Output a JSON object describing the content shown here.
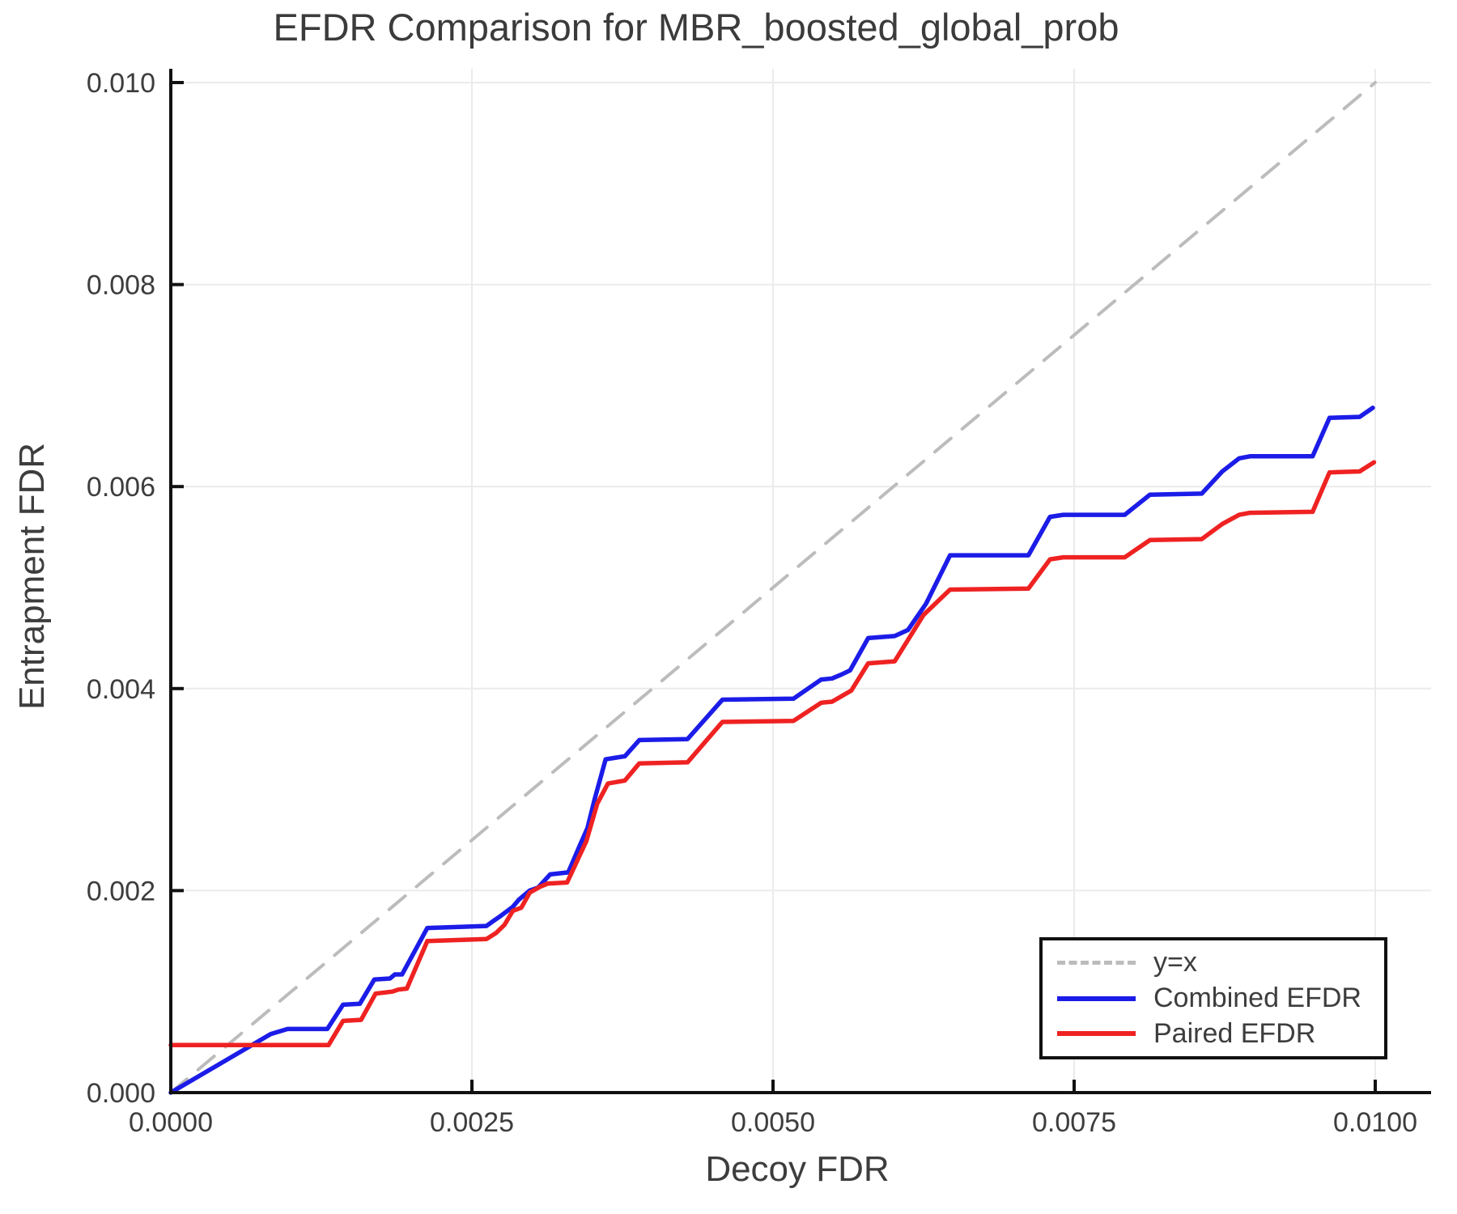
{
  "figure": {
    "title": "EFDR Comparison for MBR_boosted_global_prob",
    "xlabel": "Decoy FDR",
    "ylabel": "Entrapment FDR"
  },
  "legend": {
    "position": "lower right",
    "items": [
      {
        "label": "y=x",
        "style": "dashed",
        "color": "#bcbcbc"
      },
      {
        "label": "Combined EFDR",
        "style": "solid",
        "color": "#1c1ce8"
      },
      {
        "label": "Paired EFDR",
        "style": "solid",
        "color": "#ef2222"
      }
    ]
  },
  "axes": {
    "x_tick_labels": [
      "0.0000",
      "0.0025",
      "0.0050",
      "0.0075",
      "0.0100"
    ],
    "x_tick_values": [
      0,
      0.0025,
      0.005,
      0.0075,
      0.01
    ],
    "y_tick_labels": [
      "0.000",
      "0.002",
      "0.004",
      "0.006",
      "0.008",
      "0.010"
    ],
    "y_tick_values": [
      0,
      0.002,
      0.004,
      0.006,
      0.008,
      0.01
    ]
  },
  "style": {
    "background": "#ffffff",
    "grid_color": "#ebebeb",
    "spine_color": "#111111",
    "text_color": "#3d3d3d",
    "identity_color": "#bcbcbc",
    "combined_color": "#1c1ce8",
    "paired_color": "#ef2222"
  },
  "chart_data": {
    "type": "line",
    "title": "EFDR Comparison for MBR_boosted_global_prob",
    "xlabel": "Decoy FDR",
    "ylabel": "Entrapment FDR",
    "xlim": [
      0,
      0.01
    ],
    "ylim": [
      0,
      0.01
    ],
    "grid": true,
    "legend_position": "lower right",
    "series": [
      {
        "name": "y=x",
        "style": "dashed",
        "color": "#bcbcbc",
        "points": [
          [
            0,
            0
          ],
          [
            0.01,
            0.01
          ]
        ]
      },
      {
        "name": "Combined EFDR",
        "style": "solid",
        "color": "#1c1ce8",
        "points": [
          [
            0.0,
            0.0
          ],
          [
            0.00083,
            0.00058
          ],
          [
            0.00097,
            0.00063
          ],
          [
            0.0013,
            0.00063
          ],
          [
            0.00143,
            0.00087
          ],
          [
            0.00157,
            0.00088
          ],
          [
            0.00169,
            0.00112
          ],
          [
            0.00182,
            0.00113
          ],
          [
            0.00186,
            0.00117
          ],
          [
            0.00192,
            0.00117
          ],
          [
            0.00213,
            0.00163
          ],
          [
            0.00262,
            0.00165
          ],
          [
            0.00268,
            0.0017
          ],
          [
            0.00274,
            0.00175
          ],
          [
            0.00284,
            0.00184
          ],
          [
            0.00289,
            0.00191
          ],
          [
            0.00298,
            0.002
          ],
          [
            0.00305,
            0.00203
          ],
          [
            0.00315,
            0.00216
          ],
          [
            0.0033,
            0.00218
          ],
          [
            0.00339,
            0.00243
          ],
          [
            0.00346,
            0.00262
          ],
          [
            0.00352,
            0.00291
          ],
          [
            0.00361,
            0.0033
          ],
          [
            0.00377,
            0.00333
          ],
          [
            0.00389,
            0.00349
          ],
          [
            0.00429,
            0.0035
          ],
          [
            0.00458,
            0.00389
          ],
          [
            0.00517,
            0.0039
          ],
          [
            0.0054,
            0.00409
          ],
          [
            0.00549,
            0.0041
          ],
          [
            0.00557,
            0.00414
          ],
          [
            0.00564,
            0.00418
          ],
          [
            0.00579,
            0.0045
          ],
          [
            0.00601,
            0.00452
          ],
          [
            0.00612,
            0.00458
          ],
          [
            0.00627,
            0.00484
          ],
          [
            0.00647,
            0.00532
          ],
          [
            0.00712,
            0.00532
          ],
          [
            0.0073,
            0.0057
          ],
          [
            0.00741,
            0.00572
          ],
          [
            0.00792,
            0.00572
          ],
          [
            0.00813,
            0.00592
          ],
          [
            0.00856,
            0.00593
          ],
          [
            0.00873,
            0.00615
          ],
          [
            0.00887,
            0.00628
          ],
          [
            0.00896,
            0.0063
          ],
          [
            0.00948,
            0.0063
          ],
          [
            0.00962,
            0.00668
          ],
          [
            0.00987,
            0.00669
          ],
          [
            0.00998,
            0.00678
          ]
        ]
      },
      {
        "name": "Paired EFDR",
        "style": "solid",
        "color": "#ef2222",
        "points": [
          [
            0.0,
            0.00047
          ],
          [
            0.00131,
            0.00047
          ],
          [
            0.00143,
            0.00071
          ],
          [
            0.00158,
            0.00072
          ],
          [
            0.0017,
            0.00098
          ],
          [
            0.00184,
            0.001
          ],
          [
            0.00189,
            0.00102
          ],
          [
            0.00196,
            0.00103
          ],
          [
            0.00213,
            0.0015
          ],
          [
            0.00262,
            0.00152
          ],
          [
            0.0027,
            0.00158
          ],
          [
            0.00277,
            0.00166
          ],
          [
            0.00284,
            0.0018
          ],
          [
            0.00291,
            0.00183
          ],
          [
            0.00298,
            0.00198
          ],
          [
            0.00307,
            0.00204
          ],
          [
            0.00313,
            0.00207
          ],
          [
            0.00329,
            0.00208
          ],
          [
            0.00345,
            0.00249
          ],
          [
            0.00354,
            0.00286
          ],
          [
            0.00363,
            0.00306
          ],
          [
            0.00377,
            0.00309
          ],
          [
            0.00389,
            0.00326
          ],
          [
            0.00429,
            0.00327
          ],
          [
            0.00458,
            0.00367
          ],
          [
            0.00517,
            0.00368
          ],
          [
            0.0054,
            0.00386
          ],
          [
            0.00549,
            0.00387
          ],
          [
            0.00565,
            0.00398
          ],
          [
            0.00579,
            0.00425
          ],
          [
            0.00601,
            0.00427
          ],
          [
            0.00625,
            0.00473
          ],
          [
            0.00647,
            0.00498
          ],
          [
            0.00712,
            0.00499
          ],
          [
            0.0073,
            0.00528
          ],
          [
            0.00741,
            0.0053
          ],
          [
            0.00792,
            0.0053
          ],
          [
            0.00813,
            0.00547
          ],
          [
            0.00856,
            0.00548
          ],
          [
            0.00873,
            0.00563
          ],
          [
            0.00887,
            0.00572
          ],
          [
            0.00896,
            0.00574
          ],
          [
            0.00948,
            0.00575
          ],
          [
            0.00962,
            0.00614
          ],
          [
            0.00987,
            0.00615
          ],
          [
            0.00999,
            0.00624
          ]
        ]
      }
    ]
  }
}
